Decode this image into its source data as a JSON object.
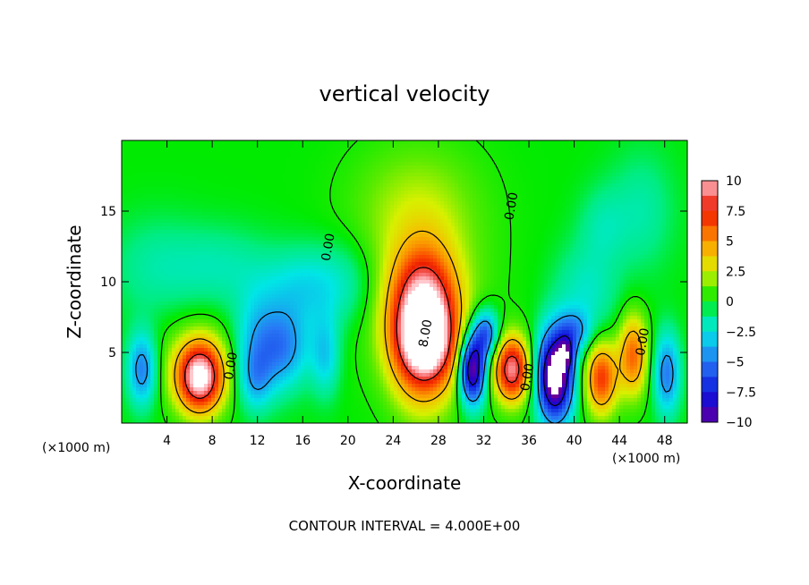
{
  "chart_data": {
    "type": "heatmap",
    "title": "vertical velocity",
    "xlabel": "X-coordinate",
    "ylabel": "Z-coordinate",
    "x_unit_left": "(×1000 m)",
    "x_unit_right": "(×1000 m)",
    "footer": "CONTOUR INTERVAL = 4.000E+00",
    "xlim": [
      0,
      50
    ],
    "ylim": [
      0,
      20
    ],
    "x_ticks": [
      4,
      8,
      12,
      16,
      20,
      24,
      28,
      32,
      36,
      40,
      44,
      48
    ],
    "y_ticks": [
      5,
      10,
      15
    ],
    "colorbar": {
      "range": [
        -10,
        10
      ],
      "ticks": [
        10,
        7.5,
        5,
        2.5,
        0,
        -2.5,
        -5,
        -7.5,
        -10
      ],
      "tick_labels": [
        "10",
        "7.5",
        "5",
        "2.5",
        "0",
        "−2.5",
        "−5",
        "−7.5",
        "−10"
      ]
    },
    "contour_labels": [
      {
        "text": "0.00",
        "x": 18.6,
        "y": 12.4
      },
      {
        "text": "0.00",
        "x": 34.8,
        "y": 15.3
      },
      {
        "text": "0.00",
        "x": 10.0,
        "y": 4.0
      },
      {
        "text": "8.00",
        "x": 27.2,
        "y": 6.3
      },
      {
        "text": "0.00",
        "x": 36.2,
        "y": 3.2
      },
      {
        "text": "0.00",
        "x": 46.4,
        "y": 5.7
      }
    ],
    "features": [
      {
        "x": 26.7,
        "z": 6.8,
        "sx": 2.0,
        "sz": 3.3,
        "amp": 13.0
      },
      {
        "x": 27.0,
        "z": 5.5,
        "sx": 1.6,
        "sz": 1.6,
        "amp": 2.5
      },
      {
        "x": 26.3,
        "z": 10.5,
        "sx": 4.0,
        "sz": 4.5,
        "amp": 2.0
      },
      {
        "x": 26.0,
        "z": 16.0,
        "sx": 4.0,
        "sz": 3.0,
        "amp": 1.2
      },
      {
        "x": 6.9,
        "z": 3.2,
        "sx": 1.4,
        "sz": 1.7,
        "amp": 10.0
      },
      {
        "x": 6.9,
        "z": 4.2,
        "sx": 2.5,
        "sz": 2.2,
        "amp": 2.0
      },
      {
        "x": 34.5,
        "z": 3.8,
        "sx": 1.1,
        "sz": 1.6,
        "amp": 9.5
      },
      {
        "x": 42.4,
        "z": 3.2,
        "sx": 1.0,
        "sz": 1.8,
        "amp": 7.0
      },
      {
        "x": 45.2,
        "z": 4.8,
        "sx": 0.9,
        "sz": 2.0,
        "amp": 6.0
      },
      {
        "x": 31.0,
        "z": 3.8,
        "sx": 0.8,
        "sz": 1.7,
        "amp": -11.0
      },
      {
        "x": 32.2,
        "z": 6.3,
        "sx": 0.8,
        "sz": 1.2,
        "amp": -6.0
      },
      {
        "x": 38.3,
        "z": 3.3,
        "sx": 1.1,
        "sz": 2.2,
        "amp": -12.5
      },
      {
        "x": 39.3,
        "z": 4.9,
        "sx": 0.5,
        "sz": 0.8,
        "amp": -4.0
      },
      {
        "x": 1.8,
        "z": 3.8,
        "sx": 0.9,
        "sz": 1.8,
        "amp": -5.0
      },
      {
        "x": 12.0,
        "z": 5.5,
        "sx": 1.5,
        "sz": 2.5,
        "amp": -3.5
      },
      {
        "x": 14.5,
        "z": 5.3,
        "sx": 1.5,
        "sz": 2.0,
        "amp": -4.0
      },
      {
        "x": 11.8,
        "z": 3.0,
        "sx": 1.0,
        "sz": 1.5,
        "amp": -2.5
      },
      {
        "x": 48.2,
        "z": 3.5,
        "sx": 0.8,
        "sz": 2.0,
        "amp": -5.0
      },
      {
        "x": 18.0,
        "z": 4.8,
        "sx": 0.9,
        "sz": 2.0,
        "amp": -3.0
      },
      {
        "x": 16.0,
        "z": 9.5,
        "sx": 2.5,
        "sz": 2.0,
        "amp": -2.5
      },
      {
        "x": 20.0,
        "z": 10.0,
        "sx": 2.2,
        "sz": 2.2,
        "amp": -1.5
      },
      {
        "x": 9.0,
        "z": 11.0,
        "sx": 3.0,
        "sz": 2.0,
        "amp": -1.5
      },
      {
        "x": 41.0,
        "z": 9.0,
        "sx": 2.0,
        "sz": 2.5,
        "amp": -2.0
      },
      {
        "x": 46.0,
        "z": 15.0,
        "sx": 2.0,
        "sz": 3.0,
        "amp": -1.5
      },
      {
        "x": 42.5,
        "z": 14.0,
        "sx": 1.5,
        "sz": 2.0,
        "amp": -1.3
      },
      {
        "x": 3.0,
        "z": 11.0,
        "sx": 3.0,
        "sz": 2.5,
        "amp": -1.4
      },
      {
        "x": 40.0,
        "z": 6.5,
        "sx": 1.0,
        "sz": 1.0,
        "amp": -3.5
      }
    ]
  }
}
